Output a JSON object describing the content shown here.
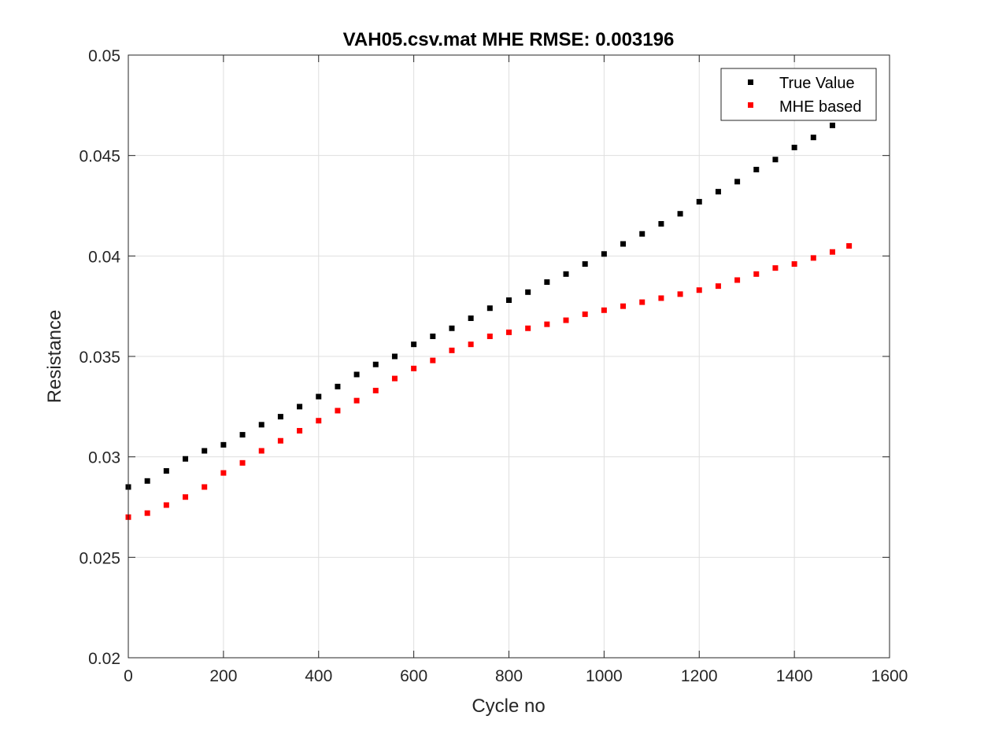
{
  "chart_data": {
    "type": "scatter",
    "title": "VAH05.csv.mat MHE RMSE: 0.003196",
    "xlabel": "Cycle no",
    "ylabel": "Resistance",
    "xlim": [
      0,
      1600
    ],
    "ylim": [
      0.02,
      0.05
    ],
    "xticks": [
      "0",
      "200",
      "400",
      "600",
      "800",
      "1000",
      "1200",
      "1400",
      "1600"
    ],
    "yticks": [
      "0.02",
      "0.025",
      "0.03",
      "0.035",
      "0.04",
      "0.045",
      "0.05"
    ],
    "grid": true,
    "legend_position": "top-right",
    "marker": "square",
    "series": [
      {
        "name": "True Value",
        "color": "#000000",
        "x": [
          0,
          40,
          80,
          120,
          160,
          200,
          240,
          280,
          320,
          360,
          400,
          440,
          480,
          520,
          560,
          600,
          640,
          680,
          720,
          760,
          800,
          840,
          880,
          920,
          960,
          1000,
          1040,
          1080,
          1120,
          1160,
          1200,
          1240,
          1280,
          1320,
          1360,
          1400,
          1440,
          1480,
          1515
        ],
        "y": [
          0.0285,
          0.0288,
          0.0293,
          0.0299,
          0.0303,
          0.0306,
          0.0311,
          0.0316,
          0.032,
          0.0325,
          0.033,
          0.0335,
          0.0341,
          0.0346,
          0.035,
          0.0356,
          0.036,
          0.0364,
          0.0369,
          0.0374,
          0.0378,
          0.0382,
          0.0387,
          0.0391,
          0.0396,
          0.0401,
          0.0406,
          0.0411,
          0.0416,
          0.0421,
          0.0427,
          0.0432,
          0.0437,
          0.0443,
          0.0448,
          0.0454,
          0.0459,
          0.0465,
          0.0469
        ]
      },
      {
        "name": "MHE based",
        "color": "#ff0000",
        "x": [
          0,
          40,
          80,
          120,
          160,
          200,
          240,
          280,
          320,
          360,
          400,
          440,
          480,
          520,
          560,
          600,
          640,
          680,
          720,
          760,
          800,
          840,
          880,
          920,
          960,
          1000,
          1040,
          1080,
          1120,
          1160,
          1200,
          1240,
          1280,
          1320,
          1360,
          1400,
          1440,
          1480,
          1515
        ],
        "y": [
          0.027,
          0.0272,
          0.0276,
          0.028,
          0.0285,
          0.0292,
          0.0297,
          0.0303,
          0.0308,
          0.0313,
          0.0318,
          0.0323,
          0.0328,
          0.0333,
          0.0339,
          0.0344,
          0.0348,
          0.0353,
          0.0356,
          0.036,
          0.0362,
          0.0364,
          0.0366,
          0.0368,
          0.0371,
          0.0373,
          0.0375,
          0.0377,
          0.0379,
          0.0381,
          0.0383,
          0.0385,
          0.0388,
          0.0391,
          0.0394,
          0.0396,
          0.0399,
          0.0402,
          0.0405
        ]
      }
    ]
  }
}
